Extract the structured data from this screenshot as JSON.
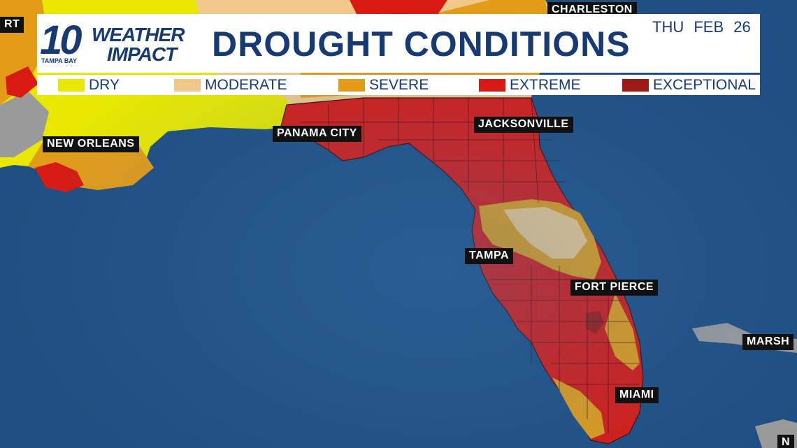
{
  "header": {
    "logo": {
      "number": "10",
      "line1": "WEATHER",
      "line2": "IMPACT",
      "sub": "TAMPA BAY"
    },
    "title": "DROUGHT CONDITIONS",
    "day": "THU",
    "date": "FEB 26"
  },
  "legend": [
    {
      "label": "DRY",
      "color": "#e8e800"
    },
    {
      "label": "MODERATE",
      "color": "#f0c98a"
    },
    {
      "label": "SEVERE",
      "color": "#e39c18"
    },
    {
      "label": "EXTREME",
      "color": "#d91a12"
    },
    {
      "label": "EXCEPTIONAL",
      "color": "#9e1a12"
    }
  ],
  "cities": [
    {
      "name": "CHARLESTON"
    },
    {
      "name": "RT"
    },
    {
      "name": "NEW ORLEANS"
    },
    {
      "name": "PANAMA CITY"
    },
    {
      "name": "JACKSONVILLE"
    },
    {
      "name": "TAMPA"
    },
    {
      "name": "FORT PIERCE"
    },
    {
      "name": "MIAMI"
    },
    {
      "name": "MARSH"
    },
    {
      "name": "N"
    }
  ],
  "colors": {
    "ocean": "#1f4f82",
    "land_gray": "#9a9a9a",
    "brand": "#163a73"
  }
}
